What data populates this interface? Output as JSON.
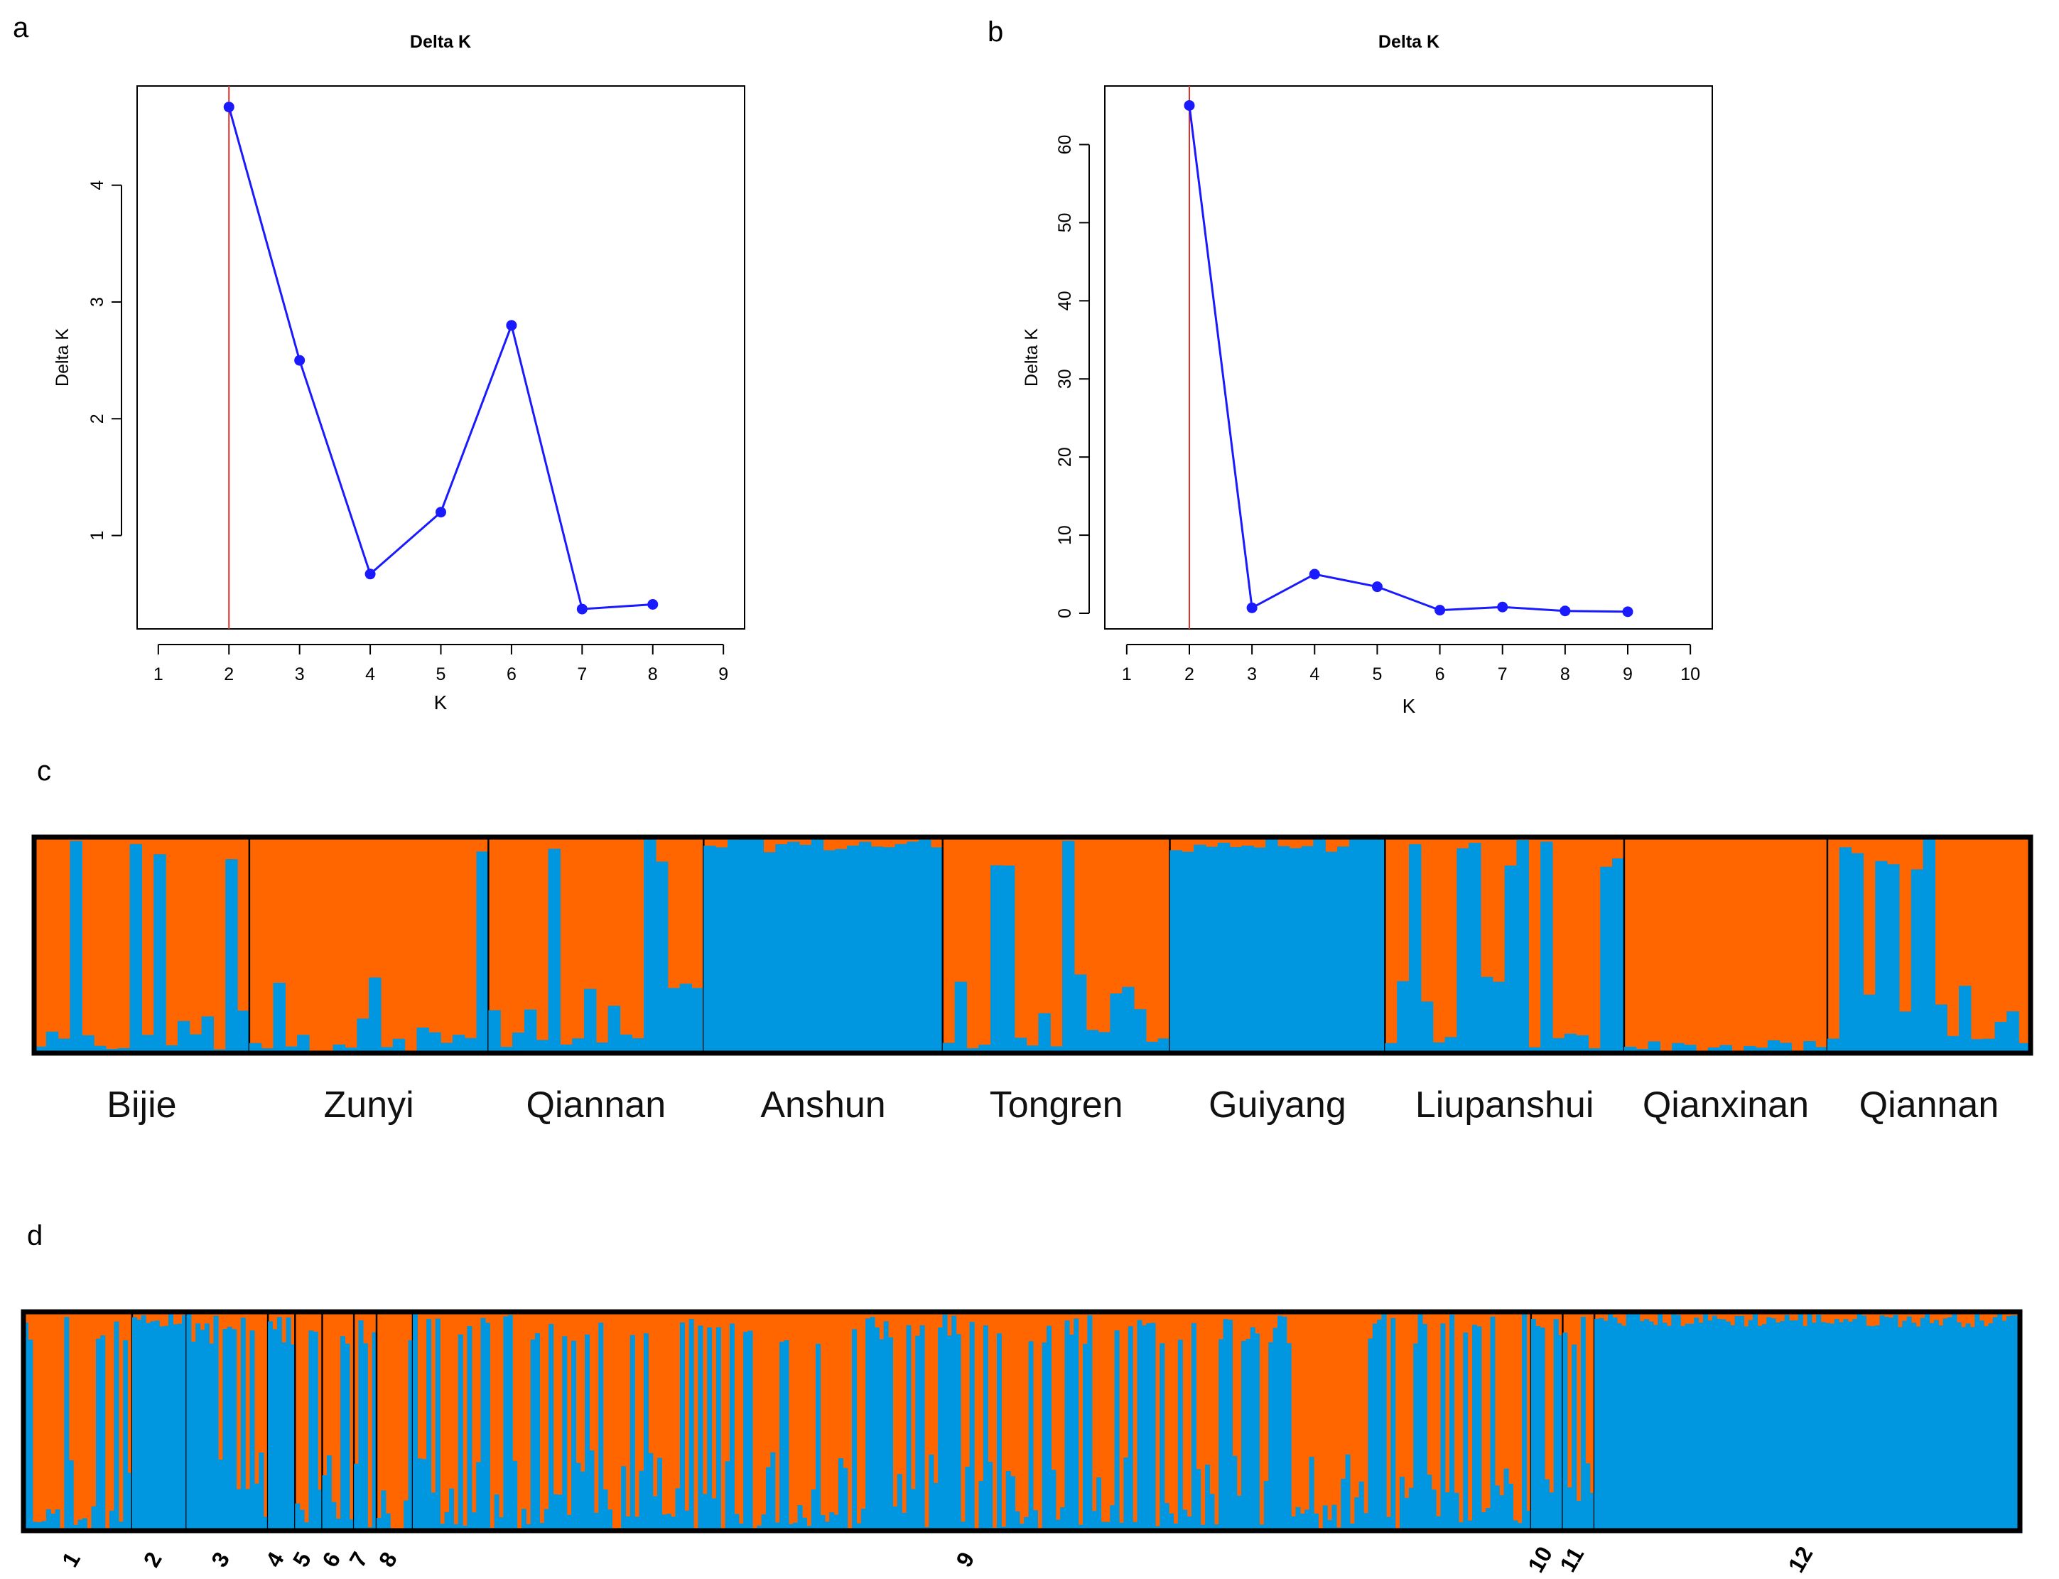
{
  "panel_labels": [
    "a",
    "b",
    "c",
    "d"
  ],
  "colors": {
    "line": "#1a1aff",
    "vline": "#e0302a",
    "orange": "#ff6600",
    "blue": "#0096e0",
    "frame": "#000000"
  },
  "chart_data": [
    {
      "type": "line",
      "panel": "a",
      "title": "Delta K",
      "xlabel": "K",
      "ylabel": "Delta K",
      "x": [
        2,
        3,
        4,
        5,
        6,
        7,
        8
      ],
      "y": [
        4.67,
        2.5,
        0.67,
        1.2,
        2.8,
        0.37,
        0.41
      ],
      "xlim": [
        0.7,
        9.3
      ],
      "ylim": [
        0.2,
        4.85
      ],
      "xticks": [
        "1",
        "2",
        "3",
        "4",
        "5",
        "6",
        "7",
        "8",
        "9"
      ],
      "yticks": [
        "1",
        "2",
        "3",
        "4"
      ],
      "vline_x": 2
    },
    {
      "type": "line",
      "panel": "b",
      "title": "Delta K",
      "xlabel": "K",
      "ylabel": "Delta K",
      "x": [
        2,
        3,
        4,
        5,
        6,
        7,
        8,
        9
      ],
      "y": [
        65,
        0.7,
        5,
        3.4,
        0.4,
        0.8,
        0.3,
        0.2
      ],
      "xlim": [
        0.65,
        10.35
      ],
      "ylim": [
        -2,
        67.5
      ],
      "xticks": [
        "1",
        "2",
        "3",
        "4",
        "5",
        "6",
        "7",
        "8",
        "9",
        "10"
      ],
      "yticks": [
        "0",
        "10",
        "20",
        "30",
        "40",
        "50",
        "60"
      ],
      "vline_x": 2
    },
    {
      "type": "bar",
      "panel": "c",
      "stacked": true,
      "series": [
        "cluster-orange",
        "cluster-blue"
      ],
      "groups": [
        "Bijie",
        "Zunyi",
        "Qiannan",
        "Anshun",
        "Tongren",
        "Guiyang",
        "Liupanshui",
        "Qianxinan",
        "Qiannan"
      ],
      "group_sizes": [
        18,
        20,
        18,
        20,
        19,
        18,
        20,
        17,
        17
      ],
      "group_blue_levels": [
        0.35,
        0.3,
        0.25,
        0.98,
        0.18,
        0.92,
        0.6,
        0.08,
        0.75
      ]
    },
    {
      "type": "bar",
      "panel": "d",
      "stacked": true,
      "series": [
        "cluster-orange",
        "cluster-blue"
      ],
      "groups": [
        "1",
        "2",
        "3",
        "4",
        "5",
        "6",
        "7",
        "8",
        "9",
        "10",
        "11",
        "12"
      ],
      "group_sizes": [
        24,
        12,
        18,
        6,
        6,
        7,
        5,
        8,
        247,
        7,
        7,
        94
      ],
      "group_blue_levels": [
        0.2,
        0.95,
        0.9,
        0.85,
        0.85,
        0.8,
        0.85,
        0.3,
        0.55,
        0.9,
        0.85,
        0.97
      ]
    }
  ]
}
